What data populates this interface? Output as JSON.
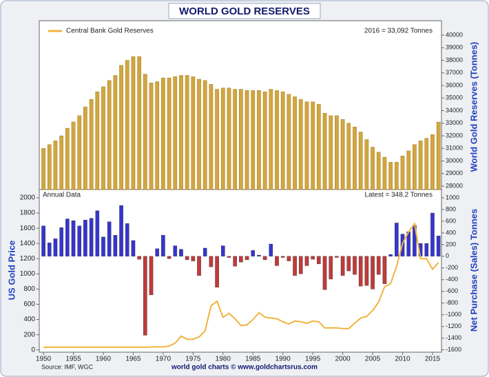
{
  "chart_data": [
    {
      "type": "bar",
      "title": "WORLD GOLD RESERVES",
      "legend": "Central Bank Gold Reserves",
      "annotation": "2016 = 33,092 Tonnes",
      "y_label": "World Gold Reserves (Tonnes)",
      "color": "#d2a640",
      "x": [
        1950,
        1951,
        1952,
        1953,
        1954,
        1955,
        1956,
        1957,
        1958,
        1959,
        1960,
        1961,
        1962,
        1963,
        1964,
        1965,
        1966,
        1967,
        1968,
        1969,
        1970,
        1971,
        1972,
        1973,
        1974,
        1975,
        1976,
        1977,
        1978,
        1979,
        1980,
        1981,
        1982,
        1983,
        1984,
        1985,
        1986,
        1987,
        1988,
        1989,
        1990,
        1991,
        1992,
        1993,
        1994,
        1995,
        1996,
        1997,
        1998,
        1999,
        2000,
        2001,
        2002,
        2003,
        2004,
        2005,
        2006,
        2007,
        2008,
        2009,
        2010,
        2011,
        2012,
        2013,
        2014,
        2015,
        2016
      ],
      "values": [
        31000,
        31300,
        31600,
        32000,
        32600,
        33100,
        33600,
        34300,
        34900,
        35500,
        35900,
        36400,
        36800,
        37600,
        38000,
        38300,
        38300,
        36900,
        36200,
        36300,
        36600,
        36600,
        36700,
        36800,
        36800,
        36700,
        36500,
        36400,
        36100,
        35700,
        35800,
        35800,
        35700,
        35700,
        35600,
        35600,
        35600,
        35500,
        35700,
        35600,
        35500,
        35300,
        35100,
        34900,
        34700,
        34700,
        34500,
        33800,
        33600,
        33600,
        33300,
        33000,
        32700,
        32300,
        31700,
        31100,
        30700,
        30300,
        29900,
        29900,
        30400,
        30800,
        31300,
        31600,
        31800,
        32100,
        33092
      ],
      "xlim": [
        1949.3,
        2016.5
      ],
      "ylim": [
        27730,
        41150
      ],
      "yticks": [
        28000,
        29000,
        30000,
        31000,
        32000,
        33000,
        34000,
        35000,
        36000,
        37000,
        38000,
        39000,
        40000
      ]
    },
    {
      "type": "combo",
      "panel_label": "Annual Data",
      "annotation": "Latest = 348.2 Tonnes",
      "y_label": "US Gold Price",
      "y2_label": "Net Purchase (Sales) Tonnes",
      "footer": "world gold charts © www.goldchartsrus.com",
      "source": "Source: IMF, WGC",
      "x": [
        1950,
        1951,
        1952,
        1953,
        1954,
        1955,
        1956,
        1957,
        1958,
        1959,
        1960,
        1961,
        1962,
        1963,
        1964,
        1965,
        1966,
        1967,
        1968,
        1969,
        1970,
        1971,
        1972,
        1973,
        1974,
        1975,
        1976,
        1977,
        1978,
        1979,
        1980,
        1981,
        1982,
        1983,
        1984,
        1985,
        1986,
        1987,
        1988,
        1989,
        1990,
        1991,
        1992,
        1993,
        1994,
        1995,
        1996,
        1997,
        1998,
        1999,
        2000,
        2001,
        2002,
        2003,
        2004,
        2005,
        2006,
        2007,
        2008,
        2009,
        2010,
        2011,
        2012,
        2013,
        2014,
        2015,
        2016
      ],
      "series": [
        {
          "kind": "bar",
          "axis": "y2",
          "color_positive": "#3535d0",
          "color_negative": "#c23a3a",
          "values": [
            520,
            230,
            300,
            490,
            640,
            610,
            520,
            620,
            650,
            780,
            330,
            590,
            360,
            870,
            560,
            270,
            -50,
            -1350,
            -660,
            130,
            360,
            -40,
            180,
            120,
            -60,
            -80,
            -330,
            140,
            -180,
            -530,
            180,
            -20,
            -170,
            -100,
            -60,
            100,
            20,
            -60,
            210,
            -160,
            -20,
            -80,
            -330,
            -300,
            -160,
            -50,
            -130,
            -570,
            -390,
            -20,
            -330,
            -250,
            -310,
            -510,
            -500,
            -560,
            -310,
            -470,
            30,
            570,
            380,
            420,
            530,
            220,
            220,
            740,
            348.2
          ]
        },
        {
          "kind": "line",
          "axis": "y",
          "color": "#f0b43c",
          "values": [
            35,
            35,
            35,
            35,
            35,
            35,
            35,
            35,
            35,
            35,
            35,
            35,
            35,
            35,
            35,
            35,
            35,
            35,
            39,
            41,
            40,
            50,
            90,
            180,
            140,
            140,
            170,
            250,
            580,
            640,
            430,
            480,
            410,
            320,
            330,
            400,
            490,
            430,
            420,
            410,
            370,
            340,
            380,
            370,
            350,
            380,
            370,
            290,
            290,
            290,
            280,
            280,
            350,
            420,
            440,
            520,
            630,
            830,
            870,
            1100,
            1400,
            1550,
            1660,
            1200,
            1200,
            1060,
            1150
          ]
        }
      ],
      "xlim": [
        1949.3,
        2016.5
      ],
      "xticks": [
        1950,
        1955,
        1960,
        1965,
        1970,
        1975,
        1980,
        1985,
        1990,
        1995,
        2000,
        2005,
        2010,
        2015
      ],
      "ylim": [
        -30,
        2100
      ],
      "yticks": [
        0,
        200,
        400,
        600,
        800,
        1000,
        1200,
        1400,
        1600,
        1800,
        2000
      ],
      "y2lim": [
        -1640,
        1130
      ],
      "y2ticks": [
        -1600,
        -1400,
        -1200,
        -1000,
        -800,
        -600,
        -400,
        -200,
        0,
        200,
        400,
        600,
        800,
        1000
      ]
    }
  ]
}
